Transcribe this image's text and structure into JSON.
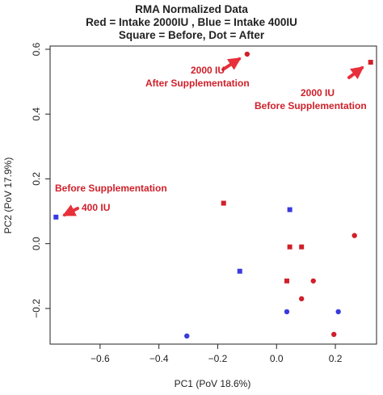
{
  "chart_data": {
    "type": "scatter",
    "title_lines": [
      "RMA Normalized Data",
      "Red = Intake 2000IU , Blue = Intake 400IU",
      "Square = Before,  Dot = After"
    ],
    "xlabel": "PC1 (PoV 18.6%)",
    "ylabel": "PC2 (PoV 17.9%)",
    "xlim": [
      -0.77,
      0.34
    ],
    "ylim": [
      -0.31,
      0.61
    ],
    "xticks": [
      -0.6,
      -0.4,
      -0.2,
      0.0,
      0.2
    ],
    "xtick_labels": [
      "−0.6",
      "−0.4",
      "−0.2",
      "0.0",
      "0.2"
    ],
    "yticks": [
      -0.2,
      0.0,
      0.2,
      0.4,
      0.6
    ],
    "ytick_labels": [
      "−0.2",
      "0.0",
      "0.2",
      "0.4",
      "0.6"
    ],
    "grid": false,
    "colors": {
      "red": "#d0202a",
      "blue": "#3a3adf",
      "arrow": "#e8303a"
    },
    "series": [
      {
        "name": "Intake 2000IU Before",
        "color": "red",
        "marker": "square",
        "points": [
          {
            "x": 0.32,
            "y": 0.56
          },
          {
            "x": -0.18,
            "y": 0.125
          },
          {
            "x": 0.045,
            "y": -0.01
          },
          {
            "x": 0.085,
            "y": -0.01
          },
          {
            "x": 0.035,
            "y": -0.115
          }
        ]
      },
      {
        "name": "Intake 2000IU After",
        "color": "red",
        "marker": "dot",
        "points": [
          {
            "x": -0.1,
            "y": 0.585
          },
          {
            "x": 0.265,
            "y": 0.025
          },
          {
            "x": 0.125,
            "y": -0.115
          },
          {
            "x": 0.085,
            "y": -0.17
          },
          {
            "x": 0.195,
            "y": -0.28
          }
        ]
      },
      {
        "name": "Intake 400IU Before",
        "color": "blue",
        "marker": "square",
        "points": [
          {
            "x": -0.75,
            "y": 0.082
          },
          {
            "x": 0.045,
            "y": 0.105
          },
          {
            "x": -0.125,
            "y": -0.085
          }
        ]
      },
      {
        "name": "Intake 400IU After",
        "color": "blue",
        "marker": "dot",
        "points": [
          {
            "x": 0.035,
            "y": -0.21
          },
          {
            "x": 0.21,
            "y": -0.21
          },
          {
            "x": -0.305,
            "y": -0.285
          }
        ]
      }
    ],
    "annotations": [
      {
        "id": "ann-2000-after",
        "lines": [
          "2000 IU",
          "After Supplementation"
        ]
      },
      {
        "id": "ann-2000-before",
        "lines": [
          "2000 IU",
          "Before Supplementation"
        ]
      },
      {
        "id": "ann-before-supp",
        "lines": [
          "Before Supplementation"
        ]
      },
      {
        "id": "ann-400",
        "lines": [
          "400 IU"
        ]
      }
    ]
  }
}
